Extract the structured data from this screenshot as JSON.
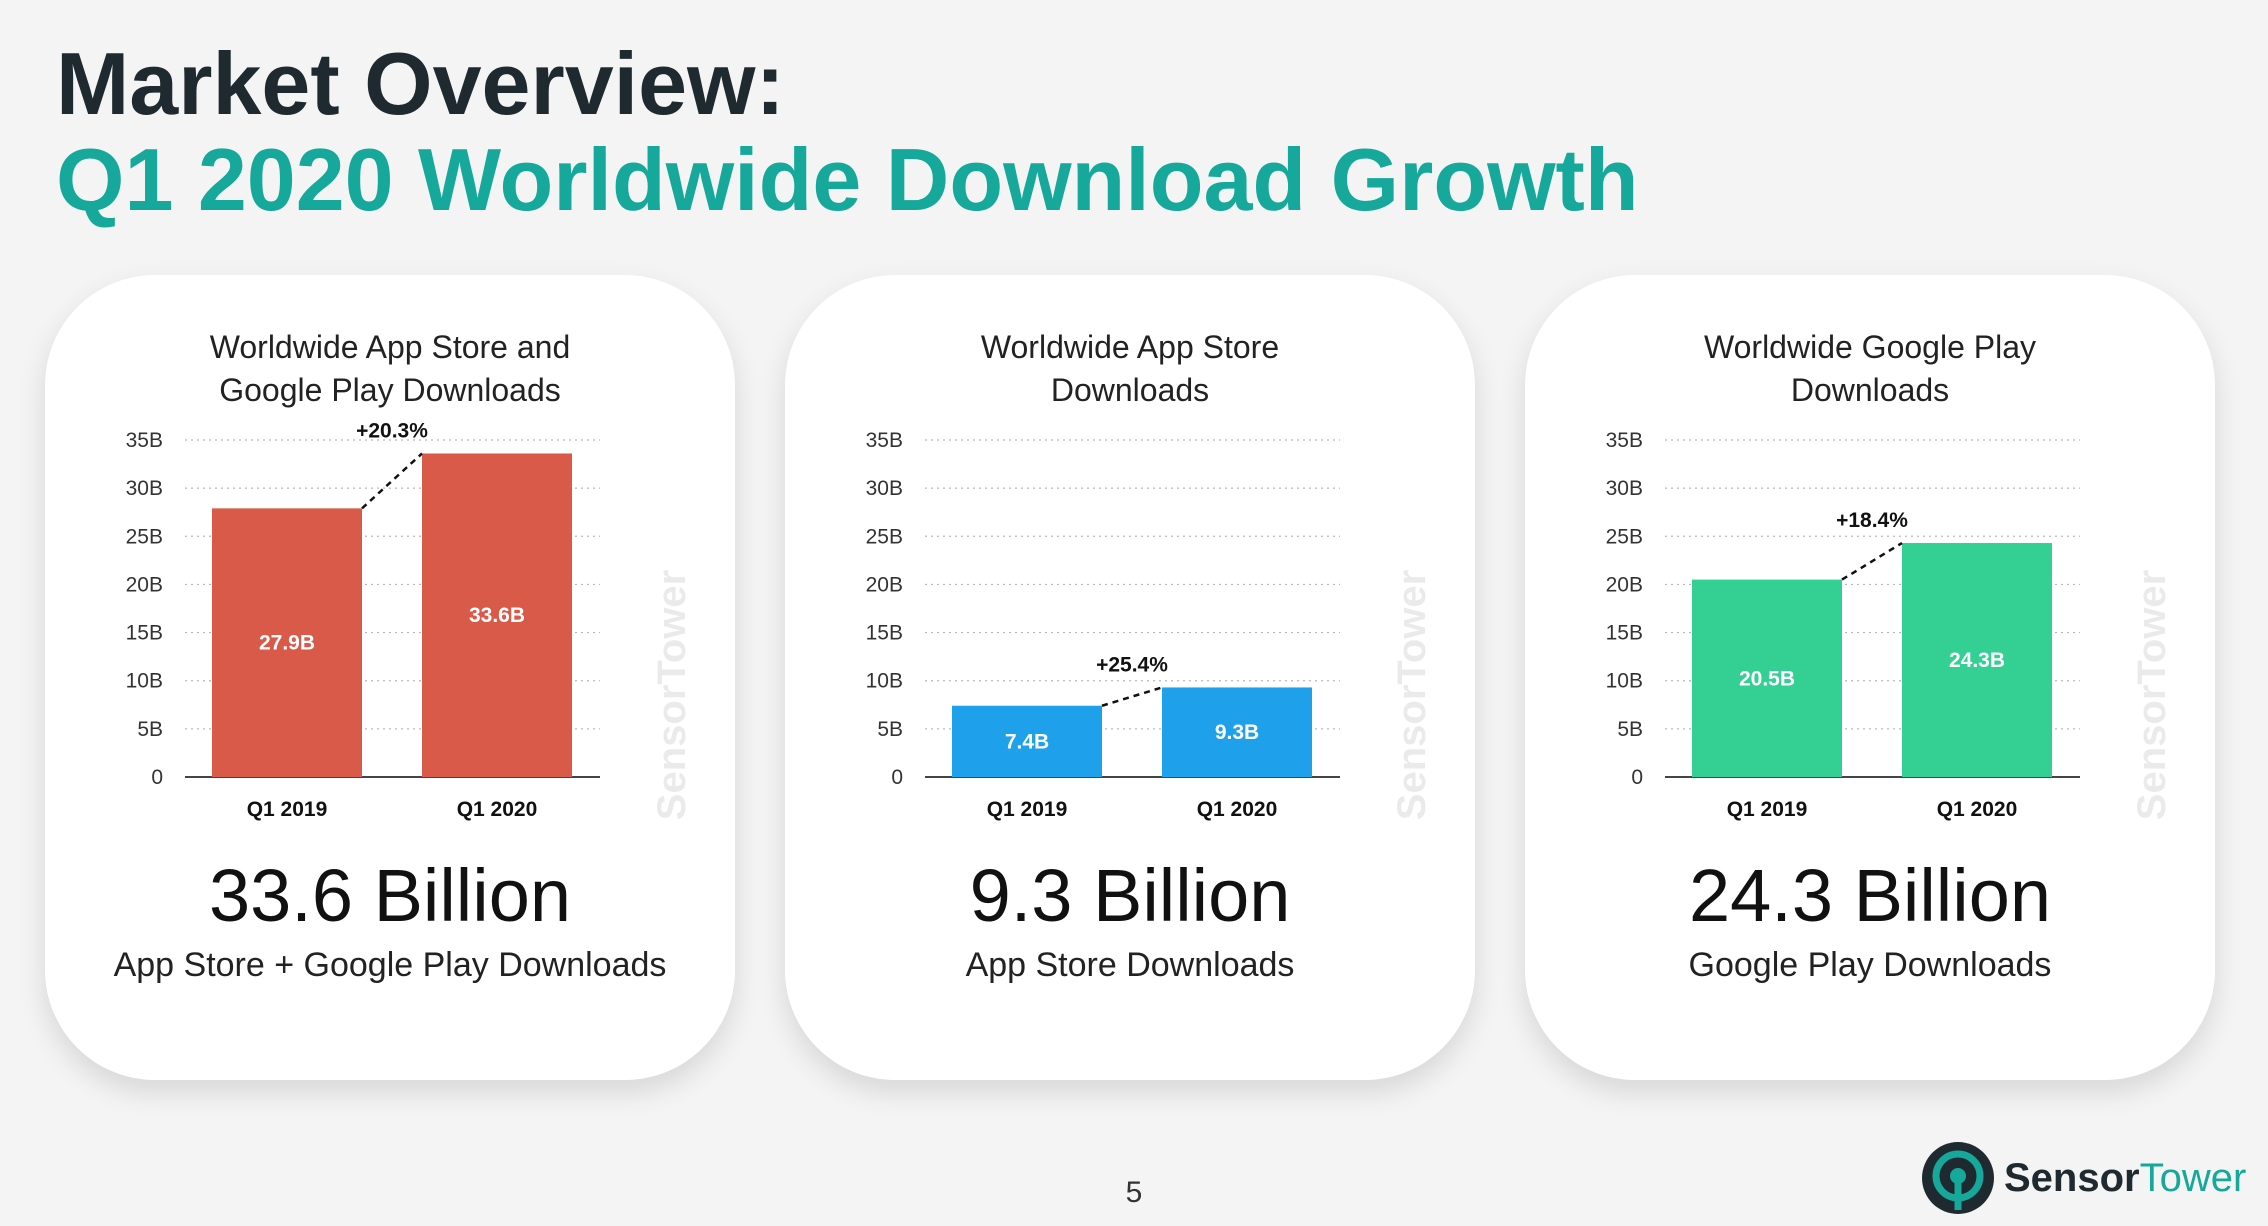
{
  "header": {
    "title_line1": "Market Overview:",
    "title_line2": "Q1 2020 Worldwide Download Growth"
  },
  "footer": {
    "page_number": "5",
    "brand_part1": "Sensor",
    "brand_part2": "Tower"
  },
  "watermark": "SensorTower",
  "colors": {
    "title_dark": "#1f2a30",
    "accent_teal": "#15a89b",
    "combined_bar": "#d95a48",
    "app_store_bar": "#1fa0ea",
    "google_play_bar": "#33cf93"
  },
  "cards": [
    {
      "big_number": "33.6 Billion",
      "subtitle": "App Store + Google Play Downloads"
    },
    {
      "big_number": "9.3 Billion",
      "subtitle": "App Store Downloads"
    },
    {
      "big_number": "24.3 Billion",
      "subtitle": "Google Play Downloads"
    }
  ],
  "chart_data": [
    {
      "type": "bar",
      "title": "Worldwide App Store and Google Play Downloads",
      "title_lines": [
        "Worldwide App Store and",
        "Google Play Downloads"
      ],
      "categories": [
        "Q1 2019",
        "Q1 2020"
      ],
      "values": [
        27.9,
        33.6
      ],
      "value_labels": [
        "27.9B",
        "33.6B"
      ],
      "growth_label": "+20.3%",
      "y_ticks": [
        0,
        5,
        10,
        15,
        20,
        25,
        30,
        35
      ],
      "y_tick_labels": [
        "0",
        "5B",
        "10B",
        "15B",
        "20B",
        "25B",
        "30B",
        "35B"
      ],
      "ylim": [
        0,
        35
      ],
      "grid": true,
      "color": "#d95a48"
    },
    {
      "type": "bar",
      "title": "Worldwide App Store Downloads",
      "title_lines": [
        "Worldwide App Store",
        "Downloads"
      ],
      "categories": [
        "Q1 2019",
        "Q1 2020"
      ],
      "values": [
        7.4,
        9.3
      ],
      "value_labels": [
        "7.4B",
        "9.3B"
      ],
      "growth_label": "+25.4%",
      "y_ticks": [
        0,
        5,
        10,
        15,
        20,
        25,
        30,
        35
      ],
      "y_tick_labels": [
        "0",
        "5B",
        "10B",
        "15B",
        "20B",
        "25B",
        "30B",
        "35B"
      ],
      "ylim": [
        0,
        35
      ],
      "grid": true,
      "color": "#1fa0ea"
    },
    {
      "type": "bar",
      "title": "Worldwide Google Play Downloads",
      "title_lines": [
        "Worldwide Google Play",
        "Downloads"
      ],
      "categories": [
        "Q1 2019",
        "Q1 2020"
      ],
      "values": [
        20.5,
        24.3
      ],
      "value_labels": [
        "20.5B",
        "24.3B"
      ],
      "growth_label": "+18.4%",
      "y_ticks": [
        0,
        5,
        10,
        15,
        20,
        25,
        30,
        35
      ],
      "y_tick_labels": [
        "0",
        "5B",
        "10B",
        "15B",
        "20B",
        "25B",
        "30B",
        "35B"
      ],
      "ylim": [
        0,
        35
      ],
      "grid": true,
      "color": "#33cf93"
    }
  ]
}
